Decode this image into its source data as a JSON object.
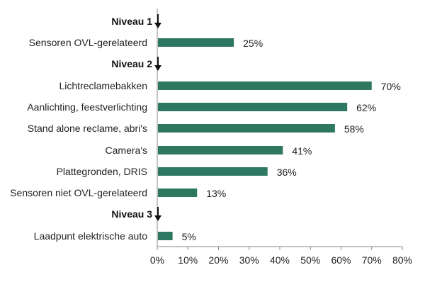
{
  "chart_data": {
    "type": "bar",
    "orientation": "horizontal",
    "title": "",
    "xlabel": "",
    "ylabel": "",
    "xlim": [
      0,
      80
    ],
    "ticks": [
      0,
      10,
      20,
      30,
      40,
      50,
      60,
      70,
      80
    ],
    "tick_suffix": "%",
    "grid": false,
    "bar_color": "#2e7760",
    "axis_color": "#888888",
    "groups": [
      {
        "heading": "Niveau 1",
        "items": [
          {
            "label": "Sensoren OVL-gerelateerd",
            "value": 25,
            "value_label": "25%"
          }
        ]
      },
      {
        "heading": "Niveau 2",
        "items": [
          {
            "label": "Lichtreclamebakken",
            "value": 70,
            "value_label": "70%"
          },
          {
            "label": "Aanlichting, feestverlichting",
            "value": 62,
            "value_label": "62%"
          },
          {
            "label": "Stand alone reclame, abri's",
            "value": 58,
            "value_label": "58%"
          },
          {
            "label": "Camera's",
            "value": 41,
            "value_label": "41%"
          },
          {
            "label": "Plattegronden, DRIS",
            "value": 36,
            "value_label": "36%"
          },
          {
            "label": "Sensoren niet OVL-gerelateerd",
            "value": 13,
            "value_label": "13%"
          }
        ]
      },
      {
        "heading": "Niveau 3",
        "items": [
          {
            "label": "Laadpunt elektrische auto",
            "value": 5,
            "value_label": "5%"
          }
        ]
      }
    ]
  }
}
